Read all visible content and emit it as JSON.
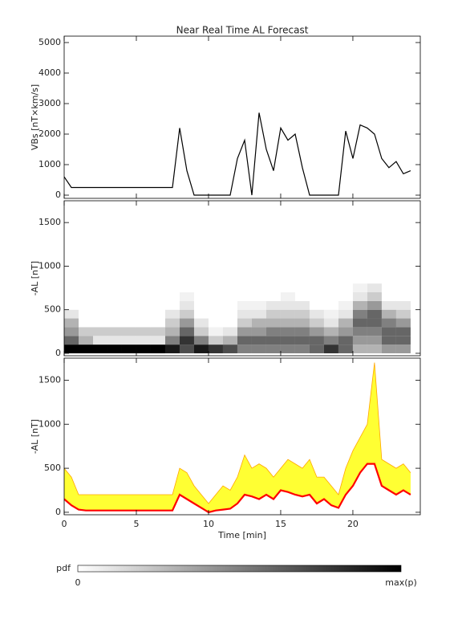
{
  "chart_data": [
    {
      "type": "line",
      "title": "Near Real Time AL Forecast",
      "y_label": "VBs [nT×km/s]",
      "xlim": [
        0,
        24.67
      ],
      "xticks": [
        0,
        5,
        10,
        15,
        20
      ],
      "ylim": [
        -105,
        5210
      ],
      "yticks": [
        0,
        1000,
        2000,
        3000,
        4000,
        5000
      ],
      "x": [
        0,
        0.5,
        1,
        1.5,
        2,
        2.5,
        3,
        3.5,
        4,
        4.5,
        5,
        5.5,
        6,
        6.5,
        7,
        7.5,
        8,
        8.5,
        9,
        9.5,
        10,
        10.5,
        11,
        11.5,
        12,
        12.5,
        13,
        13.5,
        14,
        14.5,
        15,
        15.5,
        16,
        16.5,
        17,
        17.5,
        18,
        18.5,
        19,
        19.5,
        20,
        20.5,
        21,
        21.5,
        22,
        22.5,
        23,
        23.5,
        24
      ],
      "series": [
        {
          "color": "#000000",
          "values": [
            600,
            250,
            250,
            250,
            250,
            250,
            250,
            250,
            250,
            250,
            250,
            250,
            250,
            250,
            250,
            250,
            2200,
            800,
            0,
            0,
            0,
            0,
            0,
            0,
            1200,
            1800,
            0,
            2700,
            1500,
            800,
            2200,
            1800,
            2000,
            900,
            0,
            0,
            0,
            0,
            0,
            2100,
            1200,
            2300,
            2200,
            2000,
            1200,
            900,
            1100,
            700,
            800
          ]
        }
      ]
    },
    {
      "type": "heatmap",
      "y_label": "-AL [nT]",
      "xlim": [
        0,
        24.67
      ],
      "xticks": [
        0,
        5,
        10,
        15,
        20
      ],
      "ylim": [
        -28,
        1750
      ],
      "yticks": [
        0,
        500,
        1000,
        1500
      ],
      "x_bins": [
        0,
        1,
        2,
        3,
        4,
        5,
        6,
        7,
        8,
        9,
        10,
        11,
        12,
        13,
        14,
        15,
        16,
        17,
        18,
        19,
        20,
        21,
        22,
        23,
        24
      ],
      "y_bins": [
        0,
        100,
        200,
        300,
        400,
        500,
        600,
        700,
        800
      ],
      "z": [
        [
          1,
          0.6,
          0.4,
          0.3,
          0.1,
          0,
          0,
          0
        ],
        [
          1,
          0.3,
          0.2,
          0,
          0,
          0,
          0,
          0
        ],
        [
          1,
          0.1,
          0.2,
          0,
          0,
          0,
          0,
          0
        ],
        [
          1,
          0.1,
          0.2,
          0,
          0,
          0,
          0,
          0
        ],
        [
          1,
          0.1,
          0.2,
          0,
          0,
          0,
          0,
          0
        ],
        [
          1,
          0.1,
          0.2,
          0,
          0,
          0,
          0,
          0
        ],
        [
          1,
          0.1,
          0.2,
          0,
          0,
          0,
          0,
          0
        ],
        [
          0.9,
          0.5,
          0.3,
          0.2,
          0.1,
          0,
          0,
          0
        ],
        [
          0.7,
          0.8,
          0.6,
          0.4,
          0.2,
          0.1,
          0.05,
          0
        ],
        [
          0.9,
          0.5,
          0.2,
          0.1,
          0,
          0,
          0,
          0
        ],
        [
          0.8,
          0.2,
          0.05,
          0,
          0,
          0,
          0,
          0
        ],
        [
          0.7,
          0.3,
          0.1,
          0,
          0,
          0,
          0,
          0
        ],
        [
          0.5,
          0.6,
          0.4,
          0.2,
          0.1,
          0.05,
          0,
          0
        ],
        [
          0.5,
          0.6,
          0.4,
          0.3,
          0.1,
          0.05,
          0,
          0
        ],
        [
          0.5,
          0.6,
          0.5,
          0.3,
          0.2,
          0.1,
          0,
          0
        ],
        [
          0.5,
          0.6,
          0.5,
          0.3,
          0.2,
          0.1,
          0.05,
          0
        ],
        [
          0.5,
          0.6,
          0.5,
          0.3,
          0.2,
          0.1,
          0,
          0
        ],
        [
          0.6,
          0.6,
          0.4,
          0.2,
          0.1,
          0,
          0,
          0
        ],
        [
          0.8,
          0.5,
          0.3,
          0.1,
          0.05,
          0,
          0,
          0
        ],
        [
          0.6,
          0.6,
          0.4,
          0.3,
          0.1,
          0.05,
          0,
          0
        ],
        [
          0.3,
          0.4,
          0.5,
          0.6,
          0.5,
          0.3,
          0.1,
          0.05
        ],
        [
          0.3,
          0.4,
          0.5,
          0.6,
          0.6,
          0.4,
          0.2,
          0.1
        ],
        [
          0.4,
          0.6,
          0.6,
          0.5,
          0.3,
          0.1,
          0,
          0
        ],
        [
          0.4,
          0.6,
          0.6,
          0.4,
          0.2,
          0.1,
          0,
          0
        ]
      ]
    },
    {
      "type": "band-line",
      "y_label": "-AL [nT]",
      "x_label": "Time [min]",
      "xlim": [
        0,
        24.67
      ],
      "xticks": [
        0,
        5,
        10,
        15,
        20
      ],
      "ylim": [
        -28,
        1750
      ],
      "yticks": [
        0,
        500,
        1000,
        1500
      ],
      "x": [
        0,
        0.5,
        1,
        1.5,
        2,
        2.5,
        3,
        3.5,
        4,
        4.5,
        5,
        5.5,
        6,
        6.5,
        7,
        7.5,
        8,
        8.5,
        9,
        9.5,
        10,
        10.5,
        11,
        11.5,
        12,
        12.5,
        13,
        13.5,
        14,
        14.5,
        15,
        15.5,
        16,
        16.5,
        17,
        17.5,
        18,
        18.5,
        19,
        19.5,
        20,
        20.5,
        21,
        21.5,
        22,
        22.5,
        23,
        23.5,
        24
      ],
      "band": {
        "color": "#ffff33",
        "edge_color": "#ffa500",
        "upper": [
          500,
          400,
          200,
          200,
          200,
          200,
          200,
          200,
          200,
          200,
          200,
          200,
          200,
          200,
          200,
          200,
          500,
          450,
          300,
          200,
          100,
          200,
          300,
          250,
          400,
          650,
          500,
          550,
          500,
          400,
          500,
          600,
          550,
          500,
          600,
          400,
          400,
          300,
          200,
          500,
          700,
          850,
          1000,
          1700,
          600,
          550,
          500,
          550,
          450
        ]
      },
      "series": [
        {
          "color": "#ff0000",
          "values": [
            150,
            80,
            30,
            20,
            20,
            20,
            20,
            20,
            20,
            20,
            20,
            20,
            20,
            20,
            20,
            20,
            200,
            150,
            100,
            50,
            0,
            20,
            30,
            40,
            100,
            200,
            180,
            150,
            200,
            150,
            250,
            230,
            200,
            180,
            200,
            100,
            150,
            80,
            50,
            200,
            300,
            450,
            550,
            550,
            300,
            250,
            200,
            250,
            200
          ]
        }
      ]
    }
  ],
  "colorbar": {
    "label": "pdf",
    "min_label": "0",
    "max_label": "max(p)"
  }
}
